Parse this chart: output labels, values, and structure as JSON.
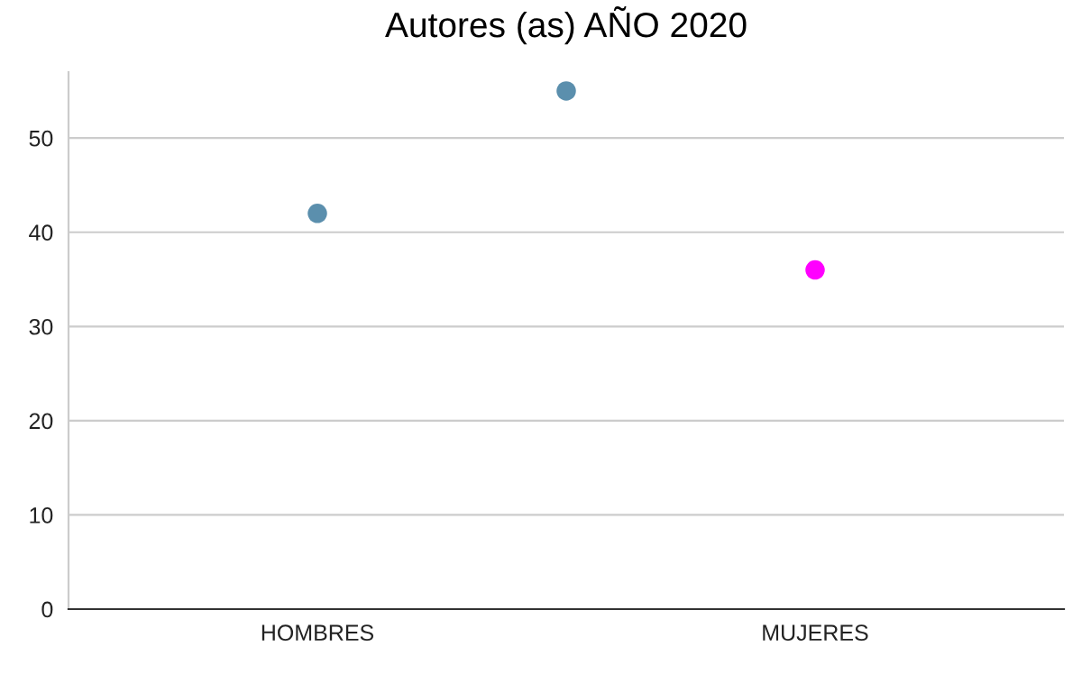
{
  "chart_data": {
    "type": "scatter",
    "title": "Autores (as) AÑO 2020",
    "categories": [
      "HOMBRES",
      null,
      "MUJERES"
    ],
    "values": [
      42,
      55,
      36
    ],
    "ylim": [
      0,
      57
    ],
    "colors": [
      "#5b8fad",
      "#5b8fad",
      "#ff00ff"
    ],
    "yticks": [
      0,
      10,
      20,
      30,
      40,
      50
    ],
    "grid": "y",
    "legend": false
  }
}
